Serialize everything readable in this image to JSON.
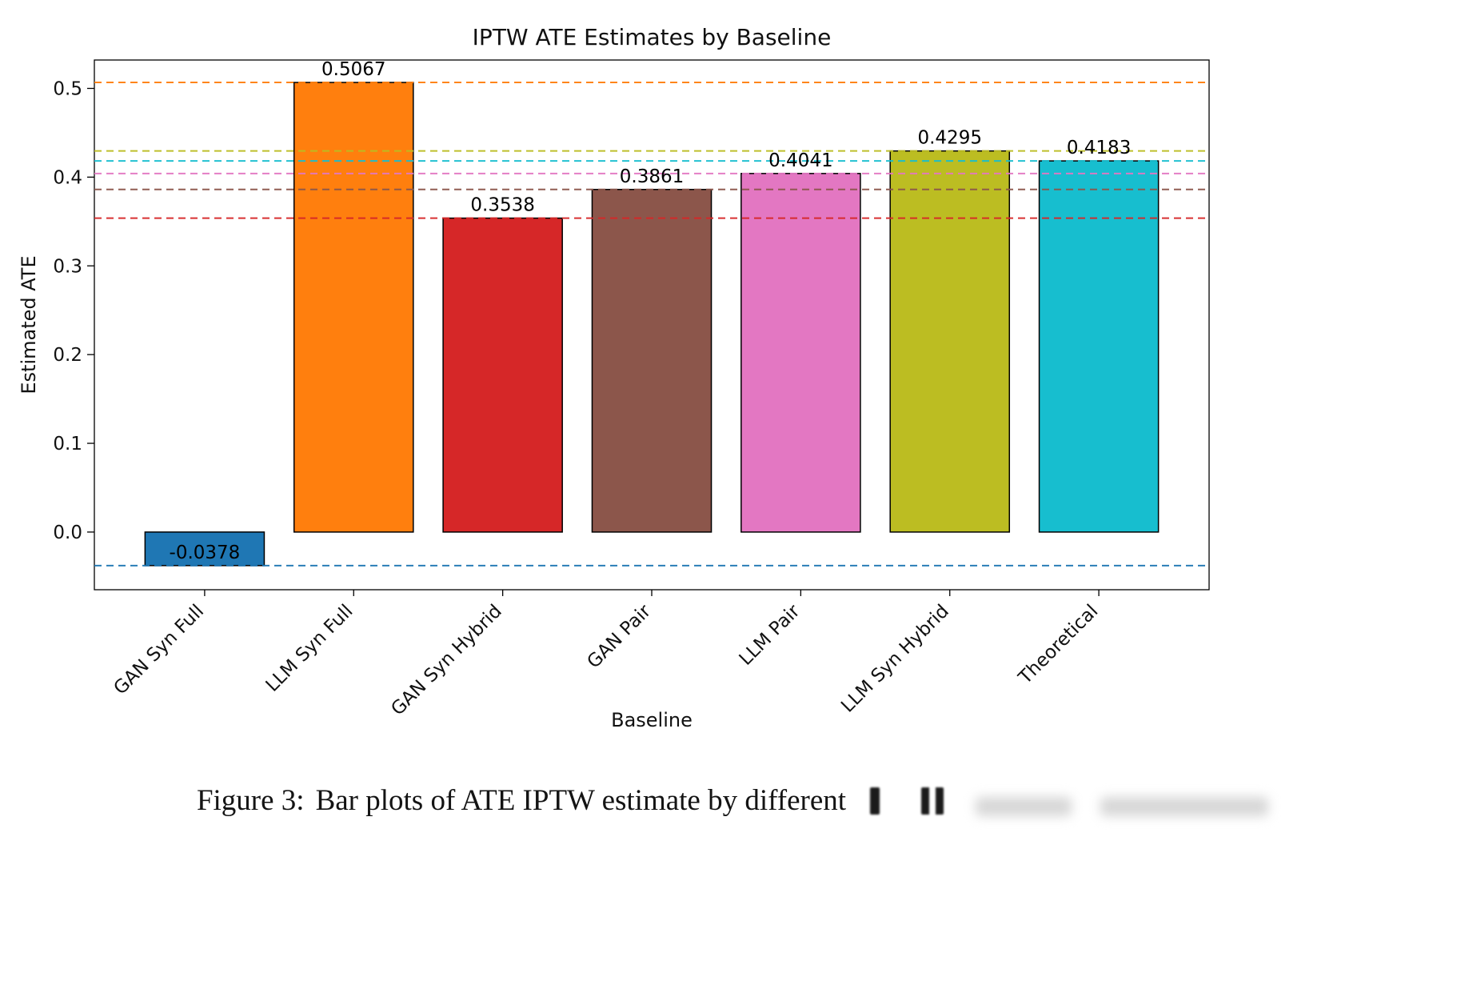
{
  "figure": {
    "caption_prefix": "Figure 3:",
    "caption_text": "Bar plots of ATE IPTW estimate by different"
  },
  "chart_data": {
    "type": "bar",
    "title": "IPTW ATE Estimates by Baseline",
    "xlabel": "Baseline",
    "ylabel": "Estimated ATE",
    "categories": [
      "GAN Syn Full",
      "LLM Syn Full",
      "GAN Syn Hybrid",
      "GAN Pair",
      "LLM Pair",
      "LLM Syn Hybrid",
      "Theoretical"
    ],
    "values": [
      -0.0378,
      0.5067,
      0.3538,
      0.3861,
      0.4041,
      0.4295,
      0.4183
    ],
    "value_labels": [
      "-0.0378",
      "0.5067",
      "0.3538",
      "0.3861",
      "0.4041",
      "0.4295",
      "0.4183"
    ],
    "bar_colors": [
      "#1f77b4",
      "#ff7f0e",
      "#d62728",
      "#8c564b",
      "#e377c2",
      "#bcbd22",
      "#17becf"
    ],
    "bar_edge_color": "#000000",
    "reference_lines": [
      {
        "value": -0.0378,
        "color": "#1f77b4"
      },
      {
        "value": 0.5067,
        "color": "#ff7f0e"
      },
      {
        "value": 0.3538,
        "color": "#d62728"
      },
      {
        "value": 0.3861,
        "color": "#8c564b"
      },
      {
        "value": 0.4041,
        "color": "#e377c2"
      },
      {
        "value": 0.4295,
        "color": "#bcbd22"
      },
      {
        "value": 0.4183,
        "color": "#17becf"
      }
    ],
    "yticks": [
      0.0,
      0.1,
      0.2,
      0.3,
      0.4,
      0.5
    ],
    "ytick_labels": [
      "0.0",
      "0.1",
      "0.2",
      "0.3",
      "0.4",
      "0.5"
    ],
    "ylim": [
      -0.065,
      0.532
    ],
    "grid": false,
    "legend": null
  }
}
